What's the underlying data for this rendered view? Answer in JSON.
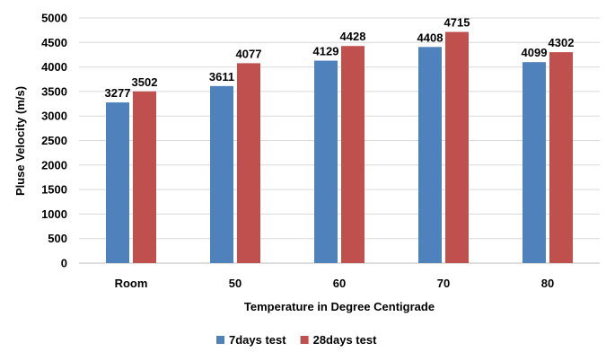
{
  "chart_data": {
    "type": "bar",
    "title": "",
    "xlabel": "Temperature in Degree Centigrade",
    "ylabel": "Pluse Velocity (m/s)",
    "categories": [
      "Room",
      "50",
      "60",
      "70",
      "80"
    ],
    "series": [
      {
        "name": "7days test",
        "values": [
          3277,
          3611,
          4129,
          4408,
          4099
        ]
      },
      {
        "name": "28days test",
        "values": [
          3502,
          4077,
          4428,
          4715,
          4302
        ]
      }
    ],
    "colors": [
      "#4f81bd",
      "#c0504d"
    ],
    "ylim": [
      0,
      5000
    ],
    "ytick_step": 500,
    "grid": true,
    "legend": "bottom"
  }
}
